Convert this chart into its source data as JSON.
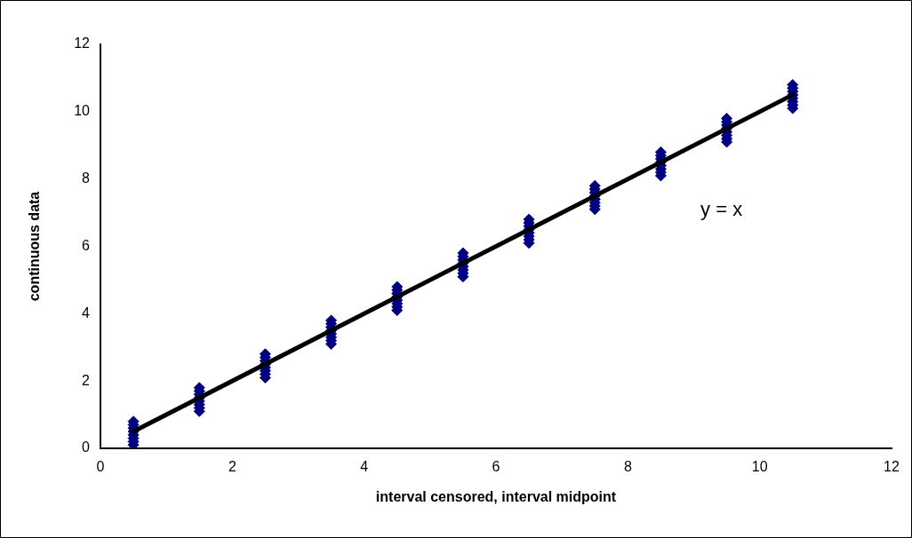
{
  "chart_data": {
    "type": "scatter",
    "xlabel": "interval censored, interval midpoint",
    "ylabel": "continuous data",
    "xlim": [
      0,
      12
    ],
    "xticks": [
      0,
      2,
      4,
      6,
      8,
      10,
      12
    ],
    "ylim": [
      0,
      12
    ],
    "yticks": [
      0,
      2,
      4,
      6,
      8,
      10,
      12
    ],
    "grid": false,
    "legend": false,
    "series": [
      {
        "color": "#000080",
        "marker": "diamond",
        "x": [
          0.5,
          0.5,
          0.5,
          0.5,
          0.5,
          0.5,
          0.5,
          0.5,
          1.5,
          1.5,
          1.5,
          1.5,
          1.5,
          1.5,
          1.5,
          1.5,
          2.5,
          2.5,
          2.5,
          2.5,
          2.5,
          2.5,
          2.5,
          2.5,
          3.5,
          3.5,
          3.5,
          3.5,
          3.5,
          3.5,
          3.5,
          3.5,
          4.5,
          4.5,
          4.5,
          4.5,
          4.5,
          4.5,
          4.5,
          4.5,
          5.5,
          5.5,
          5.5,
          5.5,
          5.5,
          5.5,
          5.5,
          5.5,
          6.5,
          6.5,
          6.5,
          6.5,
          6.5,
          6.5,
          6.5,
          6.5,
          7.5,
          7.5,
          7.5,
          7.5,
          7.5,
          7.5,
          7.5,
          7.5,
          8.5,
          8.5,
          8.5,
          8.5,
          8.5,
          8.5,
          8.5,
          8.5,
          9.5,
          9.5,
          9.5,
          9.5,
          9.5,
          9.5,
          9.5,
          9.5,
          10.5,
          10.5,
          10.5,
          10.5,
          10.5,
          10.5,
          10.5,
          10.5
        ],
        "values": [
          0.1,
          0.2,
          0.3,
          0.4,
          0.5,
          0.6,
          0.7,
          0.8,
          1.1,
          1.2,
          1.3,
          1.4,
          1.5,
          1.6,
          1.7,
          1.8,
          2.1,
          2.2,
          2.3,
          2.4,
          2.5,
          2.6,
          2.7,
          2.8,
          3.1,
          3.2,
          3.3,
          3.4,
          3.5,
          3.6,
          3.7,
          3.8,
          4.1,
          4.2,
          4.3,
          4.4,
          4.5,
          4.6,
          4.7,
          4.8,
          5.1,
          5.2,
          5.3,
          5.4,
          5.5,
          5.6,
          5.7,
          5.8,
          6.1,
          6.2,
          6.3,
          6.4,
          6.5,
          6.6,
          6.7,
          6.8,
          7.1,
          7.2,
          7.3,
          7.4,
          7.5,
          7.6,
          7.7,
          7.8,
          8.1,
          8.2,
          8.3,
          8.4,
          8.5,
          8.6,
          8.7,
          8.8,
          9.1,
          9.2,
          9.3,
          9.4,
          9.5,
          9.6,
          9.7,
          9.8,
          10.1,
          10.2,
          10.3,
          10.4,
          10.5,
          10.6,
          10.7,
          10.8
        ]
      },
      {
        "type": "line",
        "color": "#000000",
        "marker": "none",
        "line_style": "solid",
        "x": [
          0.5,
          10.5
        ],
        "values": [
          0.5,
          10.5
        ]
      }
    ],
    "annotations": [
      "y = x"
    ]
  }
}
